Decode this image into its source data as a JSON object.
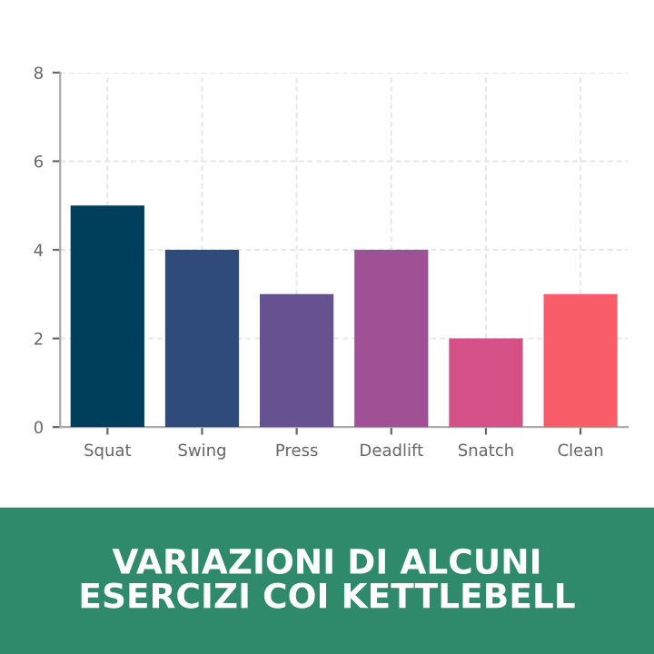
{
  "chart_data": {
    "type": "bar",
    "title": "VARIAZIONI DI ALCUNI\nESERCIZI COI KETTLEBELL",
    "categories": [
      "Squat",
      "Swing",
      "Press",
      "Deadlift",
      "Snatch",
      "Clean"
    ],
    "values": [
      5,
      4,
      3,
      4,
      2,
      3
    ],
    "colors": [
      "#003f5c",
      "#2f4b7c",
      "#665191",
      "#a05195",
      "#d45087",
      "#f95d6a"
    ],
    "ylim": [
      0,
      8
    ],
    "yticks": [
      0,
      2,
      4,
      6,
      8
    ],
    "grid": true
  }
}
